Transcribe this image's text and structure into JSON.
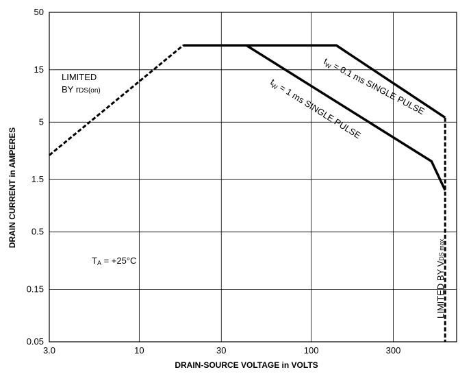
{
  "chart_data": {
    "type": "line",
    "title": "",
    "xlabel": "DRAIN-SOURCE VOLTAGE in VOLTS",
    "ylabel": "DRAIN CURRENT in AMPERES",
    "x_scale": "log",
    "y_scale": "log",
    "xlim": [
      3.0,
      700
    ],
    "ylim": [
      0.05,
      50
    ],
    "x_ticks": [
      3.0,
      10,
      30,
      100,
      300
    ],
    "x_tick_labels": [
      "3.0",
      "10",
      "30",
      "100",
      "300"
    ],
    "y_ticks": [
      0.05,
      0.15,
      0.5,
      1.5,
      5,
      15,
      50
    ],
    "y_tick_labels": [
      "0.05",
      "0.15",
      "0.5",
      "1.5",
      "5",
      "15",
      "50"
    ],
    "grid": true,
    "series": [
      {
        "name": "LIMITED BY rDS(on)",
        "style": "dashed",
        "points": [
          [
            3.0,
            2.5
          ],
          [
            18,
            25
          ]
        ]
      },
      {
        "name": "tw = 0.1 ms SINGLE PULSE",
        "style": "solid",
        "points": [
          [
            18,
            25
          ],
          [
            140,
            25
          ],
          [
            600,
            5.5
          ]
        ]
      },
      {
        "name": "tw = 1 ms SINGLE PULSE",
        "style": "solid",
        "points": [
          [
            42,
            25
          ],
          [
            500,
            2.2
          ],
          [
            600,
            1.2
          ]
        ]
      },
      {
        "name": "LIMITED BY VDS max",
        "style": "dashed",
        "points": [
          [
            600,
            5.5
          ],
          [
            600,
            0.05
          ]
        ]
      }
    ],
    "annotations": {
      "limited_line1": "LIMITED",
      "limited_line2_prefix": "BY r",
      "limited_line2_sub": "DS(on)",
      "tw01_main": "t",
      "tw01_sub": "W",
      "tw01_rest": " = 0.1 ms SINGLE PULSE",
      "tw1_main": "t",
      "tw1_sub": "W",
      "tw1_rest": " = 1 ms SINGLE PULSE",
      "ta_main": "T",
      "ta_sub": "A",
      "ta_rest": " = +25°C",
      "vds_main": "LIMITED BY V",
      "vds_sub": "DS max"
    }
  }
}
